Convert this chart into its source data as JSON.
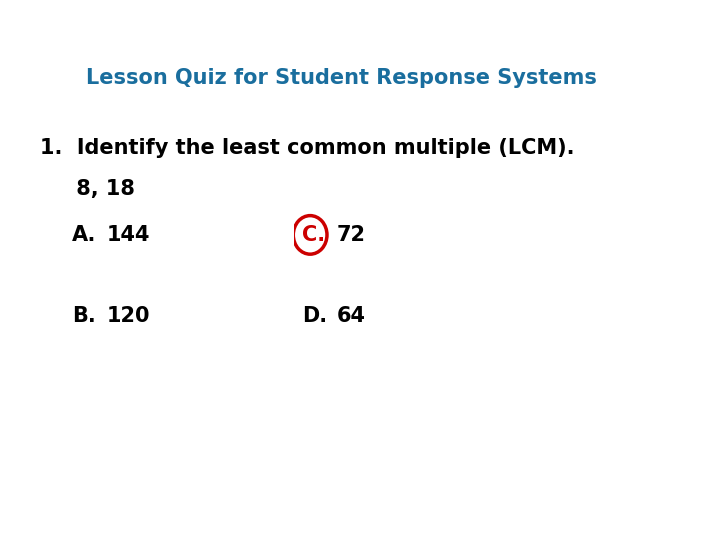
{
  "title": "Lesson Quiz for Student Response Systems",
  "title_color": "#1a6e9e",
  "bg_color": "#ffffff",
  "question_line1": "1.  Identify the least common multiple (LCM).",
  "question_line2": "     8, 18",
  "options": [
    {
      "label": "A.",
      "text": "144",
      "fx": 0.1,
      "fy": 0.565,
      "circle": false
    },
    {
      "label": "C.",
      "text": "72",
      "fx": 0.42,
      "fy": 0.565,
      "circle": true
    },
    {
      "label": "B.",
      "text": "120",
      "fx": 0.1,
      "fy": 0.415,
      "circle": false
    },
    {
      "label": "D.",
      "text": "64",
      "fx": 0.42,
      "fy": 0.415,
      "circle": false
    }
  ],
  "circle_color": "#cc0000",
  "text_color": "#000000",
  "title_fontsize": 15,
  "question_fontsize": 15,
  "option_fontsize": 15,
  "title_fx": 0.12,
  "title_fy": 0.855,
  "q1_fx": 0.055,
  "q1_fy": 0.725,
  "q2_fx": 0.055,
  "q2_fy": 0.65
}
